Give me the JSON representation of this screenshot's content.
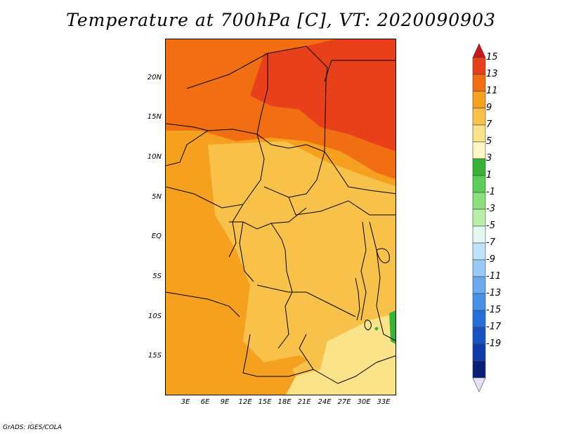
{
  "title": "Temperature at 700hPa [C], VT: 2020090903",
  "footer": "GrADS: IGES/COLA",
  "lat_labels": [
    "20N",
    "15N",
    "10N",
    "5N",
    "EQ",
    "5S",
    "10S",
    "15S"
  ],
  "lon_labels": [
    "3E",
    "6E",
    "9E",
    "12E",
    "15E",
    "18E",
    "21E",
    "24E",
    "27E",
    "30E",
    "33E"
  ],
  "colorbar": {
    "labels": [
      "15",
      "13",
      "11",
      "9",
      "7",
      "5",
      "3",
      "1",
      "-1",
      "-3",
      "-5",
      "-7",
      "-9",
      "-11",
      "-13",
      "-15",
      "-17",
      "-19"
    ],
    "colors": [
      "#c8191a",
      "#e8401a",
      "#f26e12",
      "#f5a01e",
      "#f8c24a",
      "#fbe38a",
      "#fff8c4",
      "#37b336",
      "#5ccd5a",
      "#8ce07c",
      "#b8f0a8",
      "#e4f8f0",
      "#bfe2fb",
      "#97c9f7",
      "#6aaaef",
      "#4690e6",
      "#2570d8",
      "#1652c4",
      "#0e3aaa",
      "#0a1e78",
      "#e6e0f8"
    ]
  },
  "map_colors": {
    "north_red": "#e8401a",
    "sahel_orange": "#f26e12",
    "mid_orange": "#f5a01e",
    "light_orange": "#f8c24a",
    "pale_yellow": "#fbe38a",
    "green": "#37b336"
  }
}
